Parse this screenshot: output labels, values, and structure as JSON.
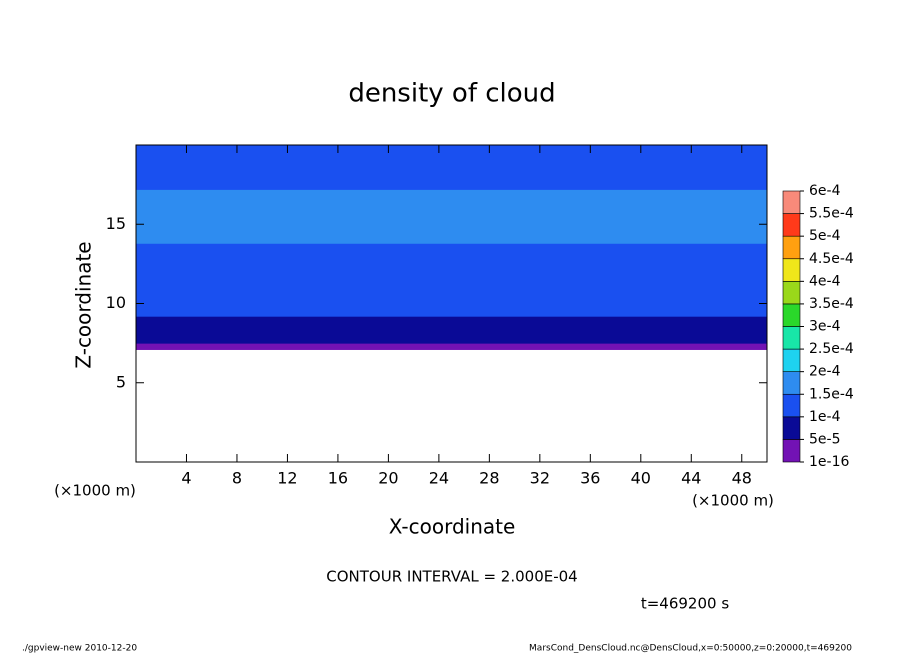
{
  "chart_data": {
    "type": "contour",
    "title": "density of cloud",
    "x_label": "X-coordinate",
    "y_label": "Z-coordinate",
    "x_unit": "(×1000 m)",
    "xlim": [
      0,
      50
    ],
    "ylim": [
      0,
      20
    ],
    "xticks": [
      4,
      8,
      12,
      16,
      20,
      24,
      28,
      32,
      36,
      40,
      44,
      48
    ],
    "yticks": [
      5,
      10,
      15
    ],
    "z_edges": [
      7.1,
      7.5,
      8.3,
      9.2,
      10.5,
      11.8,
      12.8,
      13.8,
      17.2,
      18.2,
      19.2,
      20
    ],
    "values": [
      3e-05,
      7e-05,
      9e-05,
      0.00011,
      0.00012,
      0.00013,
      0.00014,
      0.00016,
      0.00014,
      0.00012,
      0.00011
    ],
    "colorbar": {
      "ticks": [
        {
          "value": 1e-16,
          "label": "1e-16"
        },
        {
          "value": 5e-05,
          "label": "5e-5"
        },
        {
          "value": 0.0001,
          "label": "1e-4"
        },
        {
          "value": 0.00015,
          "label": "1.5e-4"
        },
        {
          "value": 0.0002,
          "label": "2e-4"
        },
        {
          "value": 0.00025,
          "label": "2.5e-4"
        },
        {
          "value": 0.0003,
          "label": "3e-4"
        },
        {
          "value": 0.00035,
          "label": "3.5e-4"
        },
        {
          "value": 0.0004,
          "label": "4e-4"
        },
        {
          "value": 0.00045,
          "label": "4.5e-4"
        },
        {
          "value": 0.0005,
          "label": "5e-4"
        },
        {
          "value": 0.00055,
          "label": "5.5e-4"
        },
        {
          "value": 0.0006,
          "label": "6e-4"
        }
      ],
      "colors": [
        "#7212b4",
        "#0a0a96",
        "#1a50f0",
        "#2e8cf0",
        "#1ed2f0",
        "#18e6a8",
        "#2ad82a",
        "#9ad81a",
        "#f0e61a",
        "#ffa010",
        "#ff3a1a",
        "#f88a7a"
      ]
    },
    "contour_interval": "CONTOUR INTERVAL = 2.000E-04",
    "time": "t=469200 s",
    "footer_left": "./gpview-new   2010-12-20",
    "footer_right": "MarsCond_DensCloud.nc@DensCloud,x=0:50000,z=0:20000,t=469200"
  }
}
